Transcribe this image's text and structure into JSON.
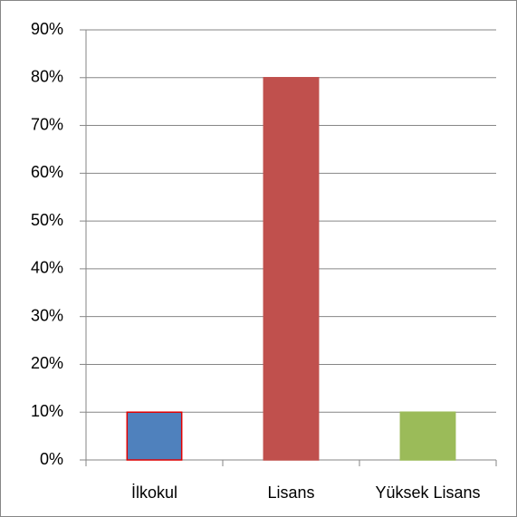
{
  "chart_data": {
    "type": "bar",
    "categories": [
      "İlkokul",
      "Lisans",
      "Yüksek Lisans"
    ],
    "values": [
      10,
      80,
      10
    ],
    "colors": [
      "#4f81bd",
      "#c0504d",
      "#9bbb59"
    ],
    "edgecolors": [
      "#e00000",
      "#c0504d",
      "#9bbb59"
    ],
    "ylim": [
      0,
      90
    ],
    "yticks": [
      {
        "value": 0,
        "label": "0%"
      },
      {
        "value": 10,
        "label": "10%"
      },
      {
        "value": 20,
        "label": "20%"
      },
      {
        "value": 30,
        "label": "30%"
      },
      {
        "value": 40,
        "label": "40%"
      },
      {
        "value": 50,
        "label": "50%"
      },
      {
        "value": 60,
        "label": "60%"
      },
      {
        "value": 70,
        "label": "70%"
      },
      {
        "value": 80,
        "label": "80%"
      },
      {
        "value": 90,
        "label": "90%"
      }
    ],
    "grid": true
  }
}
